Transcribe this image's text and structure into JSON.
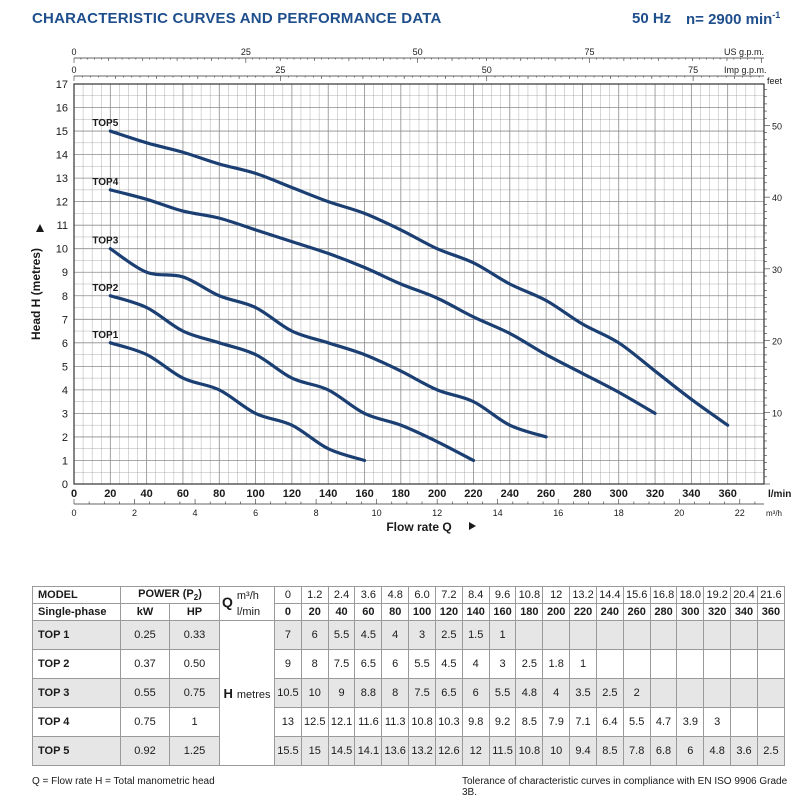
{
  "header": {
    "title": "CHARACTERISTIC CURVES AND PERFORMANCE DATA",
    "frequency": "50 Hz",
    "speed": "n= 2900 min",
    "speed_exp": "-1"
  },
  "chart_data": {
    "type": "line",
    "ylabel": "Head H (metres)",
    "ylim": [
      0,
      17
    ],
    "xlabel": "Flow rate Q",
    "xlim": [
      0,
      380
    ],
    "x_unit": "l/min",
    "right_axis_label": "feet",
    "right_ticks": [
      10,
      20,
      30,
      40,
      50
    ],
    "top_axes": [
      {
        "label": "US g.p.m.",
        "ticks": [
          0,
          25,
          50,
          75
        ]
      },
      {
        "label": "Imp g.p.m.",
        "ticks": [
          0,
          25,
          50,
          75
        ]
      }
    ],
    "bottom_m3h": {
      "label": "m³/h",
      "ticks": [
        0,
        2,
        4,
        6,
        8,
        10,
        12,
        14,
        16,
        18,
        20,
        22
      ]
    },
    "lmin_ticks": [
      20,
      40,
      60,
      80,
      100,
      120,
      140,
      160,
      180,
      200,
      220,
      240,
      260,
      280,
      300,
      320,
      340,
      360
    ],
    "head_ticks": [
      0,
      1,
      2,
      3,
      4,
      5,
      6,
      7,
      8,
      9,
      10,
      11,
      12,
      13,
      14,
      15,
      16,
      17
    ],
    "series": [
      {
        "name": "TOP1",
        "x": [
          20,
          40,
          60,
          80,
          100,
          120,
          140,
          160
        ],
        "y": [
          6,
          5.5,
          4.5,
          4,
          3,
          2.5,
          1.5,
          1
        ]
      },
      {
        "name": "TOP2",
        "x": [
          20,
          40,
          60,
          80,
          100,
          120,
          140,
          160,
          180,
          200,
          220
        ],
        "y": [
          8,
          7.5,
          6.5,
          6,
          5.5,
          4.5,
          4,
          3,
          2.5,
          1.8,
          1
        ]
      },
      {
        "name": "TOP3",
        "x": [
          20,
          40,
          60,
          80,
          100,
          120,
          140,
          160,
          180,
          200,
          220,
          240,
          260
        ],
        "y": [
          10,
          9,
          8.8,
          8,
          7.5,
          6.5,
          6,
          5.5,
          4.8,
          4,
          3.5,
          2.5,
          2
        ]
      },
      {
        "name": "TOP4",
        "x": [
          20,
          40,
          60,
          80,
          100,
          120,
          140,
          160,
          180,
          200,
          220,
          240,
          260,
          280,
          300,
          320
        ],
        "y": [
          12.5,
          12.1,
          11.6,
          11.3,
          10.8,
          10.3,
          9.8,
          9.2,
          8.5,
          7.9,
          7.1,
          6.4,
          5.5,
          4.7,
          3.9,
          3
        ]
      },
      {
        "name": "TOP5",
        "x": [
          20,
          40,
          60,
          80,
          100,
          120,
          140,
          160,
          180,
          200,
          220,
          240,
          260,
          280,
          300,
          320,
          340,
          360
        ],
        "y": [
          15,
          14.5,
          14.1,
          13.6,
          13.2,
          12.6,
          12,
          11.5,
          10.8,
          10,
          9.4,
          8.5,
          7.8,
          6.8,
          6,
          4.8,
          3.6,
          2.5
        ]
      }
    ],
    "colors": {
      "curve": "#1b3f73",
      "grid": "#8c8c8c",
      "text": "#1a1a1a"
    }
  },
  "table": {
    "model_header": "MODEL",
    "power_header": "POWER (P",
    "power_sub": "2",
    "power_close": ")",
    "single_phase": "Single-phase",
    "kw": "kW",
    "hp": "HP",
    "q_label": "Q",
    "m3h_unit": "m³/h",
    "lmin_unit": "l/min",
    "h_label": "H",
    "metres": "metres",
    "m3h": [
      "0",
      "1.2",
      "2.4",
      "3.6",
      "4.8",
      "6.0",
      "7.2",
      "8.4",
      "9.6",
      "10.8",
      "12",
      "13.2",
      "14.4",
      "15.6",
      "16.8",
      "18.0",
      "19.2",
      "20.4",
      "21.6"
    ],
    "lmin": [
      "0",
      "20",
      "40",
      "60",
      "80",
      "100",
      "120",
      "140",
      "160",
      "180",
      "200",
      "220",
      "240",
      "260",
      "280",
      "300",
      "320",
      "340",
      "360"
    ],
    "rows": [
      {
        "model": "TOP 1",
        "kw": "0.25",
        "hp": "0.33",
        "h": [
          "7",
          "6",
          "5.5",
          "4.5",
          "4",
          "3",
          "2.5",
          "1.5",
          "1",
          "",
          "",
          "",
          "",
          "",
          "",
          "",
          "",
          "",
          ""
        ]
      },
      {
        "model": "TOP 2",
        "kw": "0.37",
        "hp": "0.50",
        "h": [
          "9",
          "8",
          "7.5",
          "6.5",
          "6",
          "5.5",
          "4.5",
          "4",
          "3",
          "2.5",
          "1.8",
          "1",
          "",
          "",
          "",
          "",
          "",
          "",
          ""
        ]
      },
      {
        "model": "TOP 3",
        "kw": "0.55",
        "hp": "0.75",
        "h": [
          "10.5",
          "10",
          "9",
          "8.8",
          "8",
          "7.5",
          "6.5",
          "6",
          "5.5",
          "4.8",
          "4",
          "3.5",
          "2.5",
          "2",
          "",
          "",
          "",
          "",
          ""
        ]
      },
      {
        "model": "TOP 4",
        "kw": "0.75",
        "hp": "1",
        "h": [
          "13",
          "12.5",
          "12.1",
          "11.6",
          "11.3",
          "10.8",
          "10.3",
          "9.8",
          "9.2",
          "8.5",
          "7.9",
          "7.1",
          "6.4",
          "5.5",
          "4.7",
          "3.9",
          "3",
          "",
          ""
        ]
      },
      {
        "model": "TOP 5",
        "kw": "0.92",
        "hp": "1.25",
        "h": [
          "15.5",
          "15",
          "14.5",
          "14.1",
          "13.6",
          "13.2",
          "12.6",
          "12",
          "11.5",
          "10.8",
          "10",
          "9.4",
          "8.5",
          "7.8",
          "6.8",
          "6",
          "4.8",
          "3.6",
          "2.5"
        ]
      }
    ]
  },
  "footer": {
    "legend": "Q = Flow rate   H = Total manometric head",
    "tolerance": "Tolerance of characteristic curves in compliance with EN ISO 9906 Grade 3B."
  }
}
